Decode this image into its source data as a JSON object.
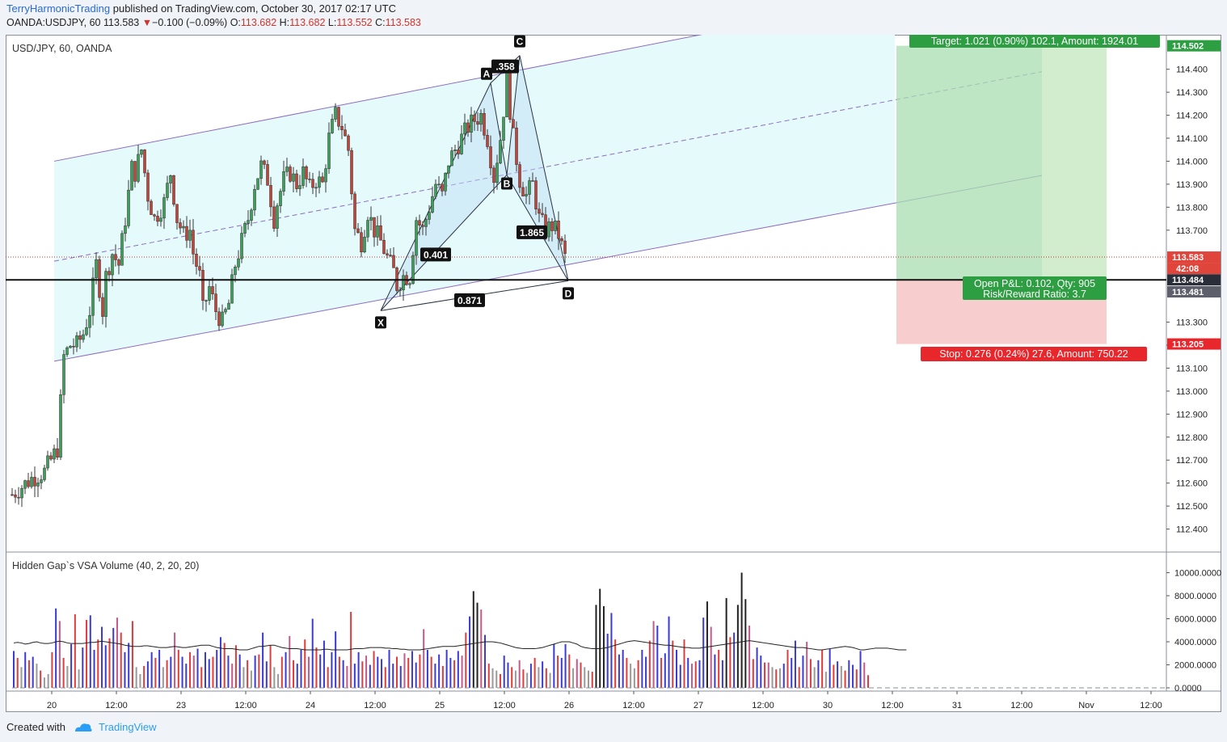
{
  "header": {
    "author": "TerryHarmonicTrading",
    "published": "published on TradingView.com, October 30, 2017 02:17 UTC",
    "symbol": "OANDA:USDJPY, 60",
    "price": "113.583",
    "change": "−0.100 (−0.09%)",
    "open_label": "O:",
    "open": "113.682",
    "high_label": "H:",
    "high": "113.682",
    "low_label": "L:",
    "low": "113.552",
    "close_label": "C:",
    "close": "113.583"
  },
  "footer": {
    "created_with": "Created with",
    "brand": "TradingView"
  },
  "colors": {
    "up": "#3e9e5a",
    "down": "#c1443b",
    "channel": "#8e6bc4",
    "pattern": "#bcdcf4",
    "target": "#2e9e43",
    "stop": "#e8272c"
  },
  "chart_data": [
    {
      "type": "candlestick",
      "title": "USD/JPY, 60, OANDA",
      "y_ticks": [
        "114.400",
        "114.300",
        "114.200",
        "114.100",
        "114.000",
        "113.900",
        "113.800",
        "113.700",
        "113.300",
        "113.200",
        "113.100",
        "113.000",
        "112.900",
        "112.800",
        "112.700",
        "112.600",
        "112.500",
        "112.400"
      ],
      "x_ticks": [
        "20",
        "12:00",
        "23",
        "12:00",
        "24",
        "12:00",
        "25",
        "12:00",
        "26",
        "12:00",
        "27",
        "12:00",
        "30",
        "12:00",
        "31",
        "12:00",
        "Nov",
        "12:00"
      ],
      "ylim": [
        112.3,
        114.55
      ],
      "close_path": [
        [
          0,
          112.55
        ],
        [
          6,
          112.62
        ],
        [
          10,
          112.65
        ],
        [
          14,
          112.75
        ],
        [
          16,
          113.15
        ],
        [
          18,
          113.2
        ],
        [
          20,
          113.2
        ],
        [
          22,
          113.25
        ],
        [
          24,
          113.35
        ],
        [
          26,
          113.55
        ],
        [
          27,
          113.45
        ],
        [
          28,
          113.35
        ],
        [
          29,
          113.5
        ],
        [
          31,
          113.6
        ],
        [
          33,
          113.55
        ],
        [
          35,
          113.75
        ],
        [
          37,
          113.97
        ],
        [
          38,
          113.95
        ],
        [
          40,
          114.05
        ],
        [
          42,
          113.85
        ],
        [
          44,
          113.75
        ],
        [
          47,
          113.82
        ],
        [
          49,
          113.95
        ],
        [
          51,
          113.75
        ],
        [
          53,
          113.68
        ],
        [
          55,
          113.7
        ],
        [
          56,
          113.6
        ],
        [
          58,
          113.5
        ],
        [
          59,
          113.35
        ],
        [
          61,
          113.45
        ],
        [
          63,
          113.35
        ],
        [
          65,
          113.3
        ],
        [
          67,
          113.38
        ],
        [
          69,
          113.55
        ],
        [
          71,
          113.65
        ],
        [
          73,
          113.75
        ],
        [
          75,
          113.9
        ],
        [
          77,
          113.98
        ],
        [
          79,
          113.92
        ],
        [
          81,
          113.75
        ],
        [
          82,
          113.82
        ],
        [
          84,
          113.92
        ],
        [
          86,
          113.95
        ],
        [
          88,
          113.9
        ],
        [
          90,
          113.95
        ],
        [
          92,
          113.88
        ],
        [
          94,
          113.92
        ],
        [
          96,
          113.9
        ],
        [
          98,
          114.1
        ],
        [
          100,
          114.2
        ],
        [
          102,
          114.15
        ],
        [
          104,
          114.05
        ],
        [
          106,
          113.7
        ],
        [
          108,
          113.65
        ],
        [
          110,
          113.78
        ],
        [
          112,
          113.7
        ],
        [
          114,
          113.65
        ],
        [
          116,
          113.58
        ],
        [
          118,
          113.52
        ],
        [
          119,
          113.46
        ],
        [
          121,
          113.5
        ],
        [
          123,
          113.5
        ],
        [
          125,
          113.75
        ],
        [
          127,
          113.7
        ],
        [
          129,
          113.8
        ],
        [
          131,
          113.9
        ],
        [
          133,
          113.85
        ],
        [
          135,
          114.0
        ],
        [
          137,
          114.05
        ],
        [
          139,
          114.1
        ],
        [
          141,
          114.15
        ],
        [
          143,
          114.18
        ],
        [
          145,
          114.2
        ],
        [
          147,
          114.1
        ],
        [
          149,
          113.93
        ],
        [
          151,
          114.1
        ],
        [
          153,
          114.35
        ],
        [
          155,
          114.1
        ],
        [
          157,
          113.92
        ],
        [
          159,
          113.85
        ],
        [
          161,
          113.9
        ],
        [
          163,
          113.75
        ],
        [
          165,
          113.7
        ],
        [
          167,
          113.72
        ],
        [
          169,
          113.68
        ],
        [
          171,
          113.58
        ]
      ],
      "harmonic_pattern": {
        "points": {
          "X": [
            114,
            113.35
          ],
          "A": [
            148,
            114.34
          ],
          "B": [
            153,
            113.94
          ],
          "C": [
            157,
            114.46
          ],
          "D": [
            172,
            113.48
          ]
        },
        "ratios": [
          "0.401",
          ".358",
          "1.865",
          "0.871"
        ],
        "labels": [
          "X",
          "A",
          "B",
          "C",
          "D"
        ]
      },
      "channel": {
        "x1": 13,
        "x2": 202,
        "upper": [
          114.0,
          114.52
        ],
        "lower": [
          113.13,
          113.63
        ],
        "mid_y1": 113.57
      },
      "price_markers": {
        "current": "113.583",
        "countdown": "42:08",
        "target": "114.502",
        "entry": "113.484",
        "line": "113.481",
        "stop": "113.205"
      },
      "position": {
        "target_label": "Target: 1.021 (0.90%) 102.1, Amount: 1924.01",
        "open_label": "Open P&L: 0.102, Qty: 905",
        "rr_label": "Risk/Reward Ratio: 3.7",
        "stop_label": "Stop: 0.276 (0.24%) 27.6, Amount: 750.22"
      }
    },
    {
      "type": "bar",
      "title": "Hidden Gap`s VSA Volume (40, 2, 20, 20)",
      "y_ticks": [
        "10000.0000",
        "8000.0000",
        "6000.0000",
        "4000.0000",
        "2000.0000",
        "0.0000"
      ],
      "ylim": [
        0,
        11300
      ],
      "values": [
        3200,
        2600,
        1800,
        3100,
        2400,
        2700,
        2100,
        1500,
        900,
        1200,
        3100,
        6900,
        5800,
        2600,
        1900,
        3800,
        6400,
        1600,
        3500,
        5900,
        6300,
        3300,
        4200,
        5300,
        3700,
        4300,
        5200,
        6100,
        4800,
        3100,
        3900,
        5800,
        1800,
        1200,
        1900,
        2300,
        3100,
        2600,
        3300,
        1800,
        2400,
        2700,
        4800,
        3300,
        2700,
        2100,
        3100,
        2800,
        3400,
        1800,
        3100,
        2500,
        2700,
        3300,
        4400,
        3900,
        2800,
        2100,
        3700,
        2900,
        1800,
        2400,
        1500,
        2800,
        2900,
        4800,
        2300,
        3700,
        1800,
        1200,
        2700,
        3100,
        4500,
        2400,
        2100,
        3300,
        4200,
        2700,
        6000,
        3500,
        2900,
        4100,
        1800,
        3100,
        4900,
        2700,
        2400,
        1900,
        6600,
        2100,
        3100,
        2300,
        2800,
        2000,
        3200,
        2700,
        2500,
        1800,
        3300,
        2100,
        2700,
        1900,
        3000,
        2600,
        3200,
        2200,
        2900,
        5100,
        3300,
        2700,
        2100,
        2900,
        1900,
        3300,
        2600,
        2400,
        3200,
        2800,
        4800,
        6200,
        8400,
        7400,
        6800,
        4600,
        2100,
        1700,
        1500,
        1200,
        2800,
        2200,
        1800,
        1500,
        2400,
        1600,
        1300,
        2100,
        2600,
        1800,
        2300,
        1700,
        1300,
        3800,
        2800,
        2600,
        3800,
        2900,
        1700,
        2500,
        2200,
        1800,
        1500,
        1400,
        7200,
        8600,
        7100,
        4700,
        6500,
        4200,
        2900,
        3300,
        2600,
        2100,
        1700,
        2400,
        3300,
        2700,
        4100,
        5800,
        5400,
        2600,
        3000,
        6200,
        4100,
        3300,
        2000,
        4200,
        2600,
        2100,
        2300,
        2400,
        6100,
        7500,
        5300,
        2900,
        3300,
        2400,
        7800,
        4400,
        4800,
        7200,
        10000,
        7700,
        5400,
        2500,
        3500,
        2800,
        2200,
        2200,
        1800,
        1600,
        1700,
        2100,
        3300,
        2600,
        4100,
        1800,
        2800,
        4000,
        2500,
        1800,
        2400,
        3300,
        1400,
        3400,
        2000,
        2300,
        1900,
        1500,
        2400,
        2000,
        1600,
        3200,
        2200,
        1100
      ],
      "ma": [
        3900,
        3950,
        3900,
        3800,
        3850,
        3950,
        4000,
        3900,
        3850,
        3850,
        3900,
        4000,
        4050,
        4000,
        3900,
        3850,
        3850,
        3850,
        3850,
        3900,
        3950,
        3950,
        4000,
        4050,
        4000,
        3950,
        3900,
        3850,
        3800,
        3700,
        3650,
        3600,
        3600,
        3600,
        3650,
        3650,
        3600,
        3550,
        3500,
        3500,
        3500,
        3550,
        3600,
        3550,
        3500,
        3500,
        3550,
        3600,
        3650,
        3700,
        3700,
        3700,
        3600,
        3500,
        3450,
        3400,
        3400,
        3400,
        3350,
        3300,
        3300,
        3300,
        3400,
        3500,
        3600,
        3600,
        3650,
        3700,
        3700,
        3600,
        3500,
        3450,
        3400,
        3400,
        3400,
        3350,
        3300,
        3300,
        3300,
        3300,
        3300,
        3350,
        3350,
        3300,
        3300,
        3300,
        3300,
        3300,
        3350,
        3400,
        3400,
        3400,
        3450,
        3500,
        3500,
        3500,
        3500,
        3450,
        3450,
        3400,
        3400,
        3350,
        3350,
        3300,
        3300,
        3300,
        3300,
        3350,
        3400,
        3450,
        3500,
        3550,
        3600,
        3600,
        3600,
        3600,
        3650,
        3700,
        3750,
        3800,
        3850,
        3900,
        3950,
        4000,
        4000,
        4000,
        3950,
        3900,
        3800,
        3700,
        3600,
        3500,
        3450,
        3400,
        3400,
        3400,
        3400,
        3450,
        3500,
        3600,
        3700,
        3800,
        3900,
        4000,
        4000,
        4000,
        3900,
        3800,
        3600,
        3500,
        3450,
        3400,
        3400,
        3400,
        3450,
        3500,
        3600,
        3700,
        3800,
        3900,
        4000,
        4050,
        4100,
        4050,
        4000,
        3950,
        3900,
        3850,
        3800,
        3750,
        3700,
        3700,
        3650,
        3600,
        3550,
        3500,
        3500,
        3450,
        3450,
        3450,
        3500,
        3550,
        3600,
        3650,
        3700,
        3750,
        3800,
        3850,
        3900,
        3950,
        4000,
        4050,
        4100,
        4050,
        4000,
        3950,
        3900,
        3850,
        3800,
        3750,
        3700,
        3650,
        3600,
        3550,
        3500,
        3500,
        3500,
        3450,
        3400,
        3350,
        3300,
        3300,
        3350,
        3400,
        3450,
        3500,
        3550,
        3600,
        3550,
        3500,
        3400,
        3300,
        3300,
        3350,
        3400,
        3450,
        3450,
        3450,
        3450,
        3400,
        3350,
        3300,
        3300,
        3300
      ]
    }
  ]
}
